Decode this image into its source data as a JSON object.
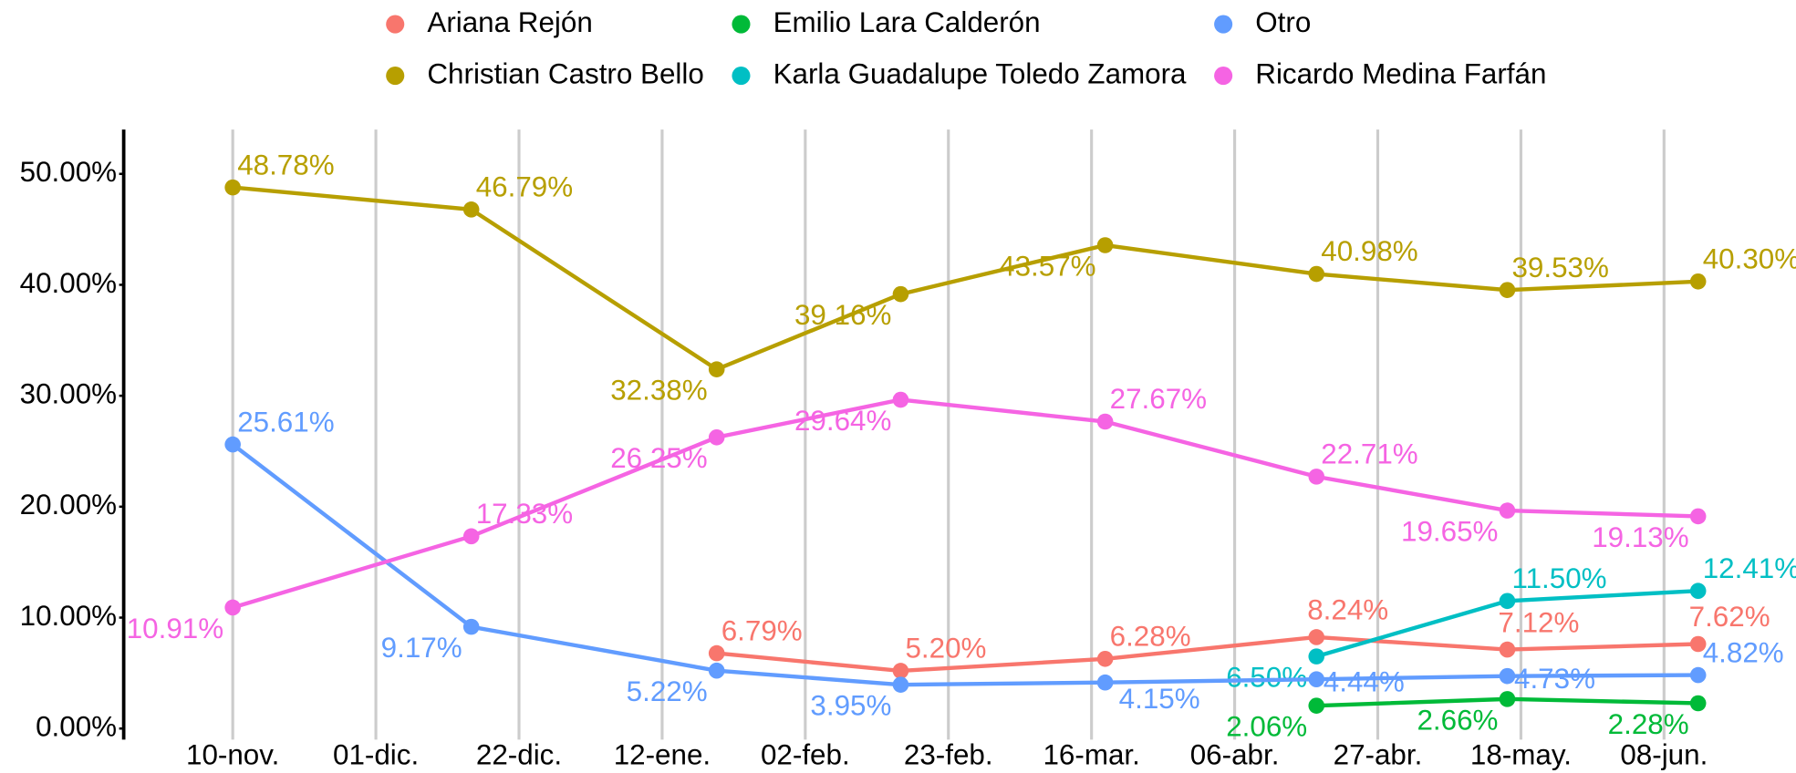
{
  "chart_data": {
    "type": "line",
    "x": [
      0,
      35,
      71,
      98,
      128,
      159,
      187,
      215
    ],
    "xlim": [
      -16,
      226
    ],
    "xticks": [
      {
        "value": 0,
        "label": "10-nov."
      },
      {
        "value": 21,
        "label": "01-dic."
      },
      {
        "value": 42,
        "label": "22-dic."
      },
      {
        "value": 63,
        "label": "12-ene."
      },
      {
        "value": 84,
        "label": "02-feb."
      },
      {
        "value": 105,
        "label": "23-feb."
      },
      {
        "value": 126,
        "label": "16-mar."
      },
      {
        "value": 147,
        "label": "06-abr."
      },
      {
        "value": 168,
        "label": "27-abr."
      },
      {
        "value": 189,
        "label": "18-may."
      },
      {
        "value": 210,
        "label": "08-jun."
      }
    ],
    "ylim": [
      -1,
      54
    ],
    "yticks": [
      {
        "value": 0,
        "label": "0.00%"
      },
      {
        "value": 10,
        "label": "10.00%"
      },
      {
        "value": 20,
        "label": "20.00%"
      },
      {
        "value": 30,
        "label": "30.00%"
      },
      {
        "value": 40,
        "label": "40.00%"
      },
      {
        "value": 50,
        "label": "50.00%"
      }
    ],
    "grid": "x",
    "legend": "top",
    "series": [
      {
        "name": "Ariana Rejón",
        "color": "#f8766d",
        "values": [
          null,
          null,
          6.79,
          5.2,
          6.28,
          8.24,
          7.12,
          7.62
        ],
        "value_labels": [
          null,
          null,
          "6.79%",
          "5.20%",
          "6.28%",
          "8.24%",
          "7.12%",
          "7.62%"
        ]
      },
      {
        "name": "Christian Castro Bello",
        "color": "#b79f00",
        "values": [
          48.78,
          46.79,
          32.38,
          39.16,
          43.57,
          40.98,
          39.53,
          40.3
        ],
        "value_labels": [
          "48.78%",
          "46.79%",
          "32.38%",
          "39.16%",
          "43.57%",
          "40.98%",
          "39.53%",
          "40.30%"
        ]
      },
      {
        "name": "Emilio Lara Calderón",
        "color": "#00ba38",
        "values": [
          null,
          null,
          null,
          null,
          null,
          2.06,
          2.66,
          2.28
        ],
        "value_labels": [
          null,
          null,
          null,
          null,
          null,
          "2.06%",
          "2.66%",
          "2.28%"
        ]
      },
      {
        "name": "Karla Guadalupe Toledo Zamora",
        "color": "#00bfc4",
        "values": [
          null,
          null,
          null,
          null,
          null,
          6.5,
          11.5,
          12.41
        ],
        "value_labels": [
          null,
          null,
          null,
          null,
          null,
          "6.50%",
          "11.50%",
          "12.41%"
        ]
      },
      {
        "name": "Otro",
        "color": "#619cff",
        "values": [
          25.61,
          9.17,
          5.22,
          3.95,
          4.15,
          4.44,
          4.73,
          4.82
        ],
        "value_labels": [
          "25.61%",
          "9.17%",
          "5.22%",
          "3.95%",
          "4.15%",
          "4.44%",
          "4.73%",
          "4.82%"
        ]
      },
      {
        "name": "Ricardo Medina Farfán",
        "color": "#f564e3",
        "values": [
          10.91,
          17.33,
          26.25,
          29.64,
          27.67,
          22.71,
          19.65,
          19.13
        ],
        "value_labels": [
          "10.91%",
          "17.33%",
          "26.25%",
          "29.64%",
          "27.67%",
          "22.71%",
          "19.65%",
          "19.13%"
        ]
      }
    ]
  }
}
